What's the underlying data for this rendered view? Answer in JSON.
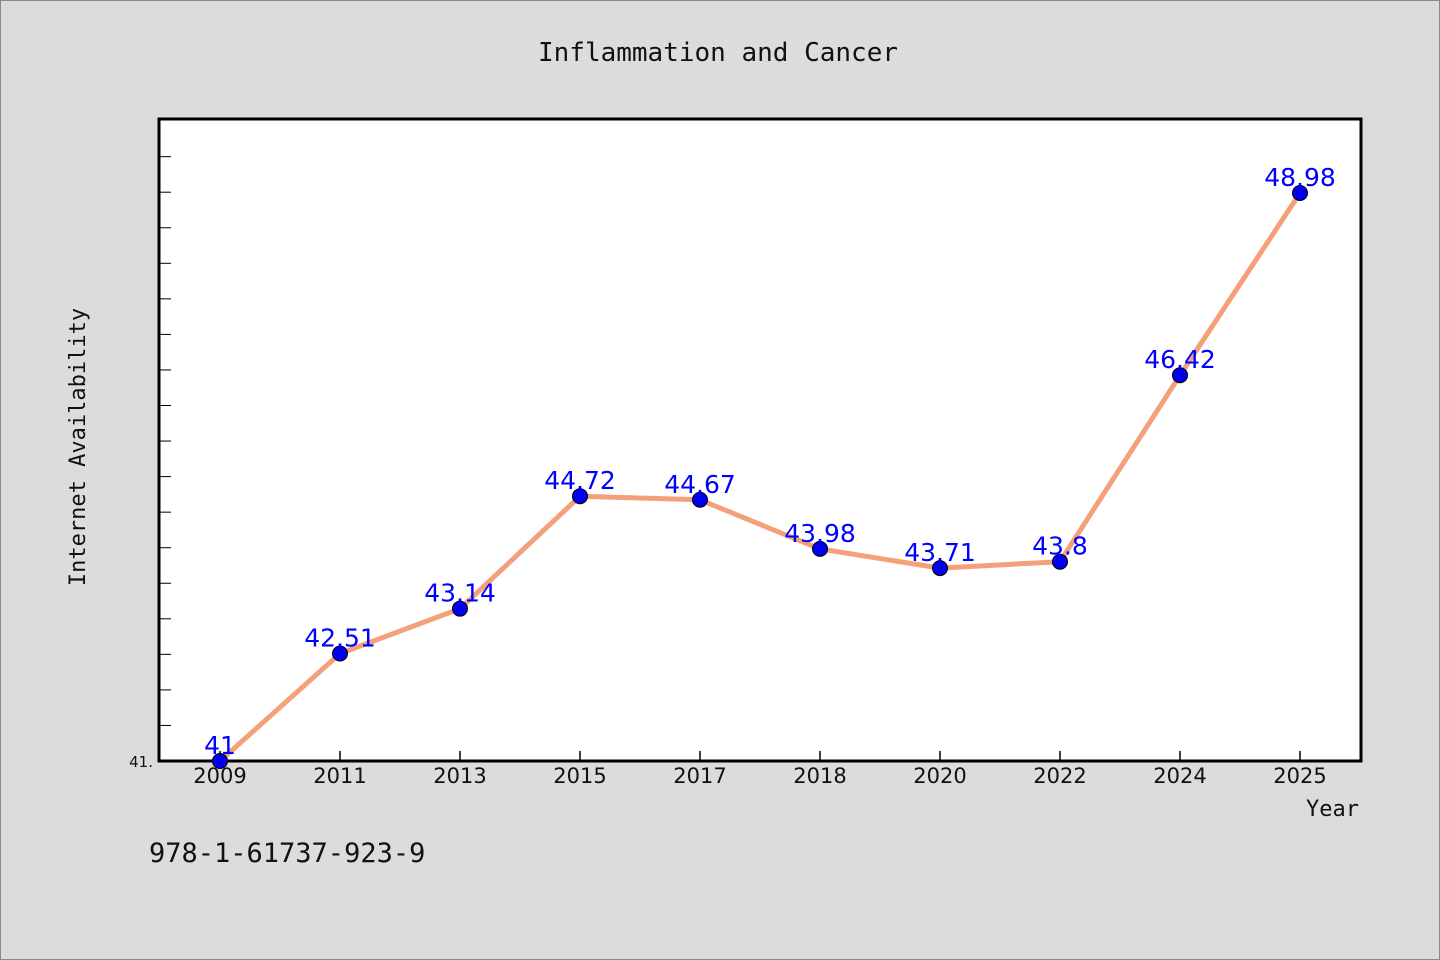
{
  "chart_data": {
    "type": "line",
    "title": "Inflammation and Cancer",
    "xlabel": "Year",
    "ylabel": "Internet Availability",
    "categories": [
      "2009",
      "2011",
      "2013",
      "2015",
      "2017",
      "2018",
      "2020",
      "2022",
      "2024",
      "2025"
    ],
    "series": [
      {
        "values": [
          41,
          42.51,
          43.14,
          44.72,
          44.67,
          43.98,
          43.71,
          43.8,
          46.42,
          48.98
        ],
        "data_labels": [
          "41",
          "42.51",
          "43.14",
          "44.72",
          "44.67",
          "43.98",
          "43.71",
          "43.8",
          "46.42",
          "48.98"
        ],
        "line_color": "#f4a07a",
        "marker_color": "#0000ee"
      }
    ],
    "y_tick_labels": [
      "41."
    ],
    "ylim": [
      41,
      50
    ],
    "grid": false,
    "label_color": "#0000ff"
  },
  "footer": {
    "isbn": "978-1-61737-923-9"
  }
}
